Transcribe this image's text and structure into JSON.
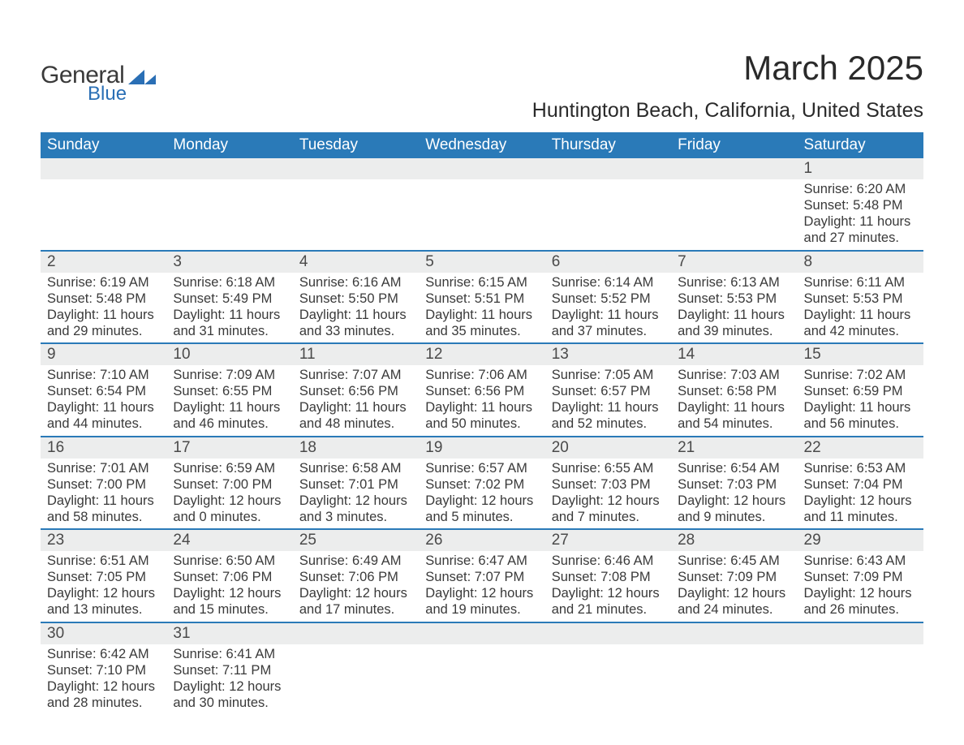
{
  "logo": {
    "text1": "General",
    "text2": "Blue",
    "shape_color": "#2a6fb5",
    "text1_color": "#3a3a3a"
  },
  "title": "March 2025",
  "location": "Huntington Beach, California, United States",
  "colors": {
    "header_bg": "#2a7ab8",
    "header_text": "#ffffff",
    "daynum_bg": "#eceded",
    "row_border": "#2a7ab8",
    "body_text": "#3a3a3a",
    "page_bg": "#ffffff"
  },
  "fonts": {
    "title_size_pt": 32,
    "location_size_pt": 19,
    "header_size_pt": 14,
    "daynum_size_pt": 14,
    "body_size_pt": 12
  },
  "weekdays": [
    "Sunday",
    "Monday",
    "Tuesday",
    "Wednesday",
    "Thursday",
    "Friday",
    "Saturday"
  ],
  "weeks": [
    [
      null,
      null,
      null,
      null,
      null,
      null,
      {
        "n": "1",
        "sunrise": "6:20 AM",
        "sunset": "5:48 PM",
        "daylight": "11 hours and 27 minutes."
      }
    ],
    [
      {
        "n": "2",
        "sunrise": "6:19 AM",
        "sunset": "5:48 PM",
        "daylight": "11 hours and 29 minutes."
      },
      {
        "n": "3",
        "sunrise": "6:18 AM",
        "sunset": "5:49 PM",
        "daylight": "11 hours and 31 minutes."
      },
      {
        "n": "4",
        "sunrise": "6:16 AM",
        "sunset": "5:50 PM",
        "daylight": "11 hours and 33 minutes."
      },
      {
        "n": "5",
        "sunrise": "6:15 AM",
        "sunset": "5:51 PM",
        "daylight": "11 hours and 35 minutes."
      },
      {
        "n": "6",
        "sunrise": "6:14 AM",
        "sunset": "5:52 PM",
        "daylight": "11 hours and 37 minutes."
      },
      {
        "n": "7",
        "sunrise": "6:13 AM",
        "sunset": "5:53 PM",
        "daylight": "11 hours and 39 minutes."
      },
      {
        "n": "8",
        "sunrise": "6:11 AM",
        "sunset": "5:53 PM",
        "daylight": "11 hours and 42 minutes."
      }
    ],
    [
      {
        "n": "9",
        "sunrise": "7:10 AM",
        "sunset": "6:54 PM",
        "daylight": "11 hours and 44 minutes."
      },
      {
        "n": "10",
        "sunrise": "7:09 AM",
        "sunset": "6:55 PM",
        "daylight": "11 hours and 46 minutes."
      },
      {
        "n": "11",
        "sunrise": "7:07 AM",
        "sunset": "6:56 PM",
        "daylight": "11 hours and 48 minutes."
      },
      {
        "n": "12",
        "sunrise": "7:06 AM",
        "sunset": "6:56 PM",
        "daylight": "11 hours and 50 minutes."
      },
      {
        "n": "13",
        "sunrise": "7:05 AM",
        "sunset": "6:57 PM",
        "daylight": "11 hours and 52 minutes."
      },
      {
        "n": "14",
        "sunrise": "7:03 AM",
        "sunset": "6:58 PM",
        "daylight": "11 hours and 54 minutes."
      },
      {
        "n": "15",
        "sunrise": "7:02 AM",
        "sunset": "6:59 PM",
        "daylight": "11 hours and 56 minutes."
      }
    ],
    [
      {
        "n": "16",
        "sunrise": "7:01 AM",
        "sunset": "7:00 PM",
        "daylight": "11 hours and 58 minutes."
      },
      {
        "n": "17",
        "sunrise": "6:59 AM",
        "sunset": "7:00 PM",
        "daylight": "12 hours and 0 minutes."
      },
      {
        "n": "18",
        "sunrise": "6:58 AM",
        "sunset": "7:01 PM",
        "daylight": "12 hours and 3 minutes."
      },
      {
        "n": "19",
        "sunrise": "6:57 AM",
        "sunset": "7:02 PM",
        "daylight": "12 hours and 5 minutes."
      },
      {
        "n": "20",
        "sunrise": "6:55 AM",
        "sunset": "7:03 PM",
        "daylight": "12 hours and 7 minutes."
      },
      {
        "n": "21",
        "sunrise": "6:54 AM",
        "sunset": "7:03 PM",
        "daylight": "12 hours and 9 minutes."
      },
      {
        "n": "22",
        "sunrise": "6:53 AM",
        "sunset": "7:04 PM",
        "daylight": "12 hours and 11 minutes."
      }
    ],
    [
      {
        "n": "23",
        "sunrise": "6:51 AM",
        "sunset": "7:05 PM",
        "daylight": "12 hours and 13 minutes."
      },
      {
        "n": "24",
        "sunrise": "6:50 AM",
        "sunset": "7:06 PM",
        "daylight": "12 hours and 15 minutes."
      },
      {
        "n": "25",
        "sunrise": "6:49 AM",
        "sunset": "7:06 PM",
        "daylight": "12 hours and 17 minutes."
      },
      {
        "n": "26",
        "sunrise": "6:47 AM",
        "sunset": "7:07 PM",
        "daylight": "12 hours and 19 minutes."
      },
      {
        "n": "27",
        "sunrise": "6:46 AM",
        "sunset": "7:08 PM",
        "daylight": "12 hours and 21 minutes."
      },
      {
        "n": "28",
        "sunrise": "6:45 AM",
        "sunset": "7:09 PM",
        "daylight": "12 hours and 24 minutes."
      },
      {
        "n": "29",
        "sunrise": "6:43 AM",
        "sunset": "7:09 PM",
        "daylight": "12 hours and 26 minutes."
      }
    ],
    [
      {
        "n": "30",
        "sunrise": "6:42 AM",
        "sunset": "7:10 PM",
        "daylight": "12 hours and 28 minutes."
      },
      {
        "n": "31",
        "sunrise": "6:41 AM",
        "sunset": "7:11 PM",
        "daylight": "12 hours and 30 minutes."
      },
      null,
      null,
      null,
      null,
      null
    ]
  ],
  "labels": {
    "sunrise": "Sunrise: ",
    "sunset": "Sunset: ",
    "daylight": "Daylight: "
  }
}
